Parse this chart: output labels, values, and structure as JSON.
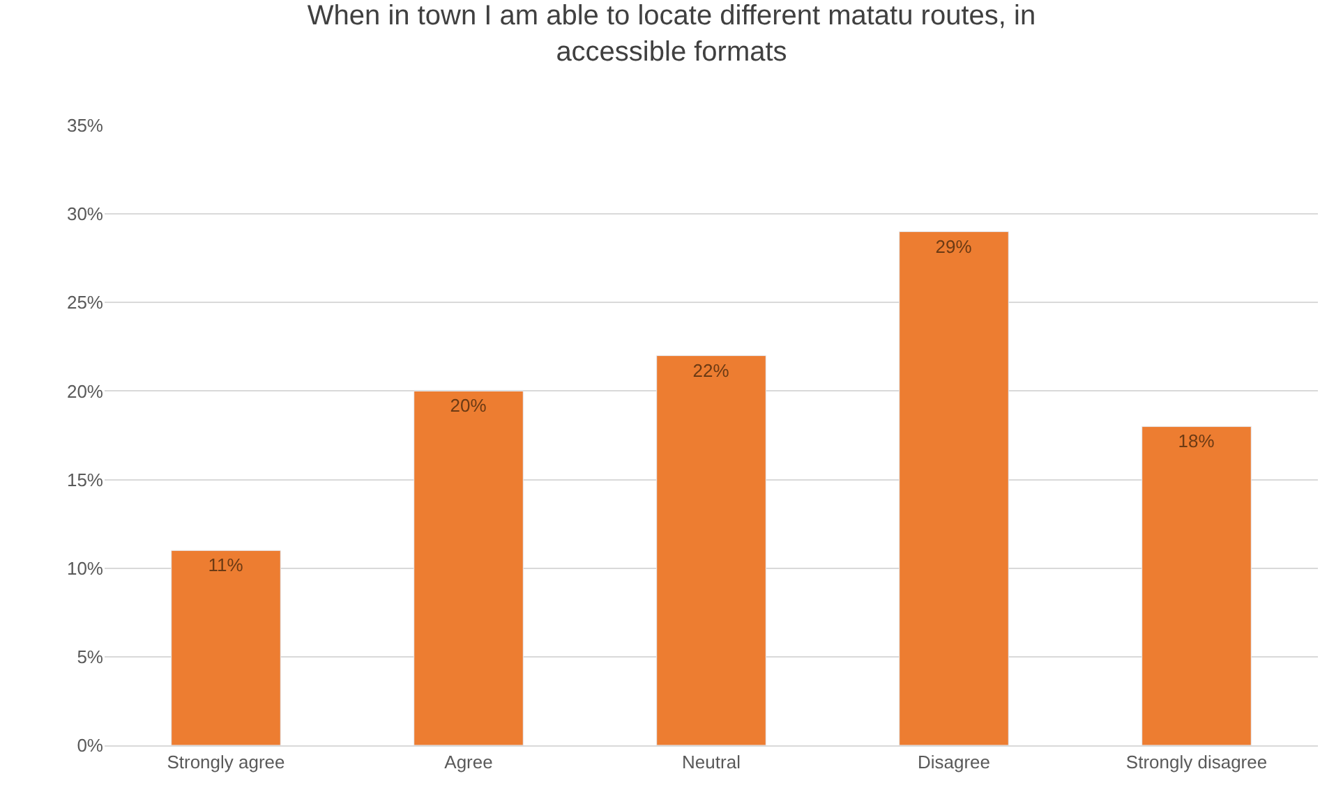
{
  "chart_data": {
    "type": "bar",
    "title": "When in town I am able to locate different matatu routes, in accessible formats",
    "categories": [
      "Strongly agree",
      "Agree",
      "Neutral",
      "Disagree",
      "Strongly disagree"
    ],
    "values": [
      11,
      20,
      22,
      29,
      18
    ],
    "value_labels": [
      "11%",
      "20%",
      "22%",
      "29%",
      "18%"
    ],
    "color": "#ed7d31",
    "ylim": [
      0,
      35
    ],
    "yticks": [
      {
        "value": 0,
        "label": "0%"
      },
      {
        "value": 5,
        "label": "5%"
      },
      {
        "value": 10,
        "label": "10%"
      },
      {
        "value": 15,
        "label": "15%"
      },
      {
        "value": 20,
        "label": "20%"
      },
      {
        "value": 25,
        "label": "25%"
      },
      {
        "value": 30,
        "label": "30%"
      },
      {
        "value": 35,
        "label": "35%"
      }
    ],
    "grid": "y",
    "legend": false
  }
}
